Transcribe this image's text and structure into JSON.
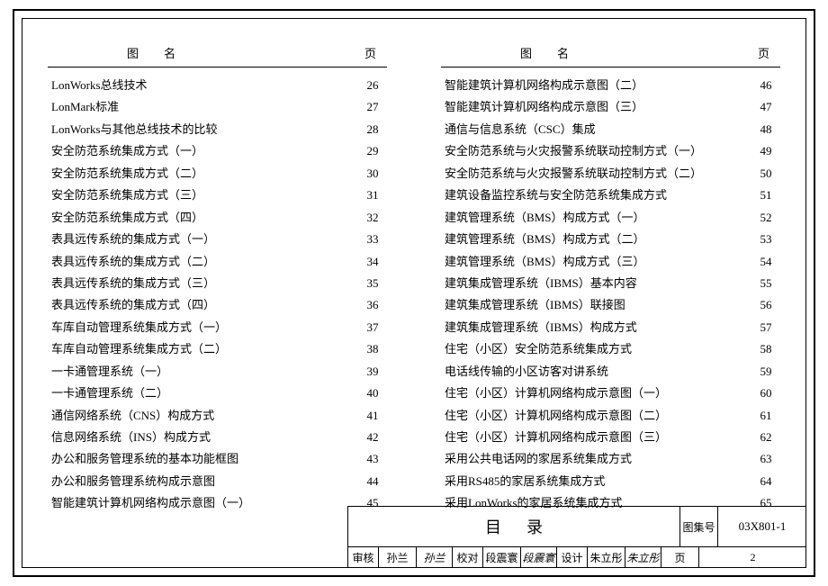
{
  "header": {
    "name": "图名",
    "page": "页"
  },
  "left": [
    {
      "title": "LonWorks总线技术",
      "page": "26"
    },
    {
      "title": "LonMark标准",
      "page": "27"
    },
    {
      "title": "LonWorks与其他总线技术的比较",
      "page": "28"
    },
    {
      "title": "安全防范系统集成方式（一）",
      "page": "29"
    },
    {
      "title": "安全防范系统集成方式（二）",
      "page": "30"
    },
    {
      "title": "安全防范系统集成方式（三）",
      "page": "31"
    },
    {
      "title": "安全防范系统集成方式（四）",
      "page": "32"
    },
    {
      "title": "表具远传系统的集成方式（一）",
      "page": "33"
    },
    {
      "title": "表具远传系统的集成方式（二）",
      "page": "34"
    },
    {
      "title": "表具远传系统的集成方式（三）",
      "page": "35"
    },
    {
      "title": "表具远传系统的集成方式（四）",
      "page": "36"
    },
    {
      "title": "车库自动管理系统集成方式（一）",
      "page": "37"
    },
    {
      "title": "车库自动管理系统集成方式（二）",
      "page": "38"
    },
    {
      "title": "一卡通管理系统（一）",
      "page": "39"
    },
    {
      "title": "一卡通管理系统（二）",
      "page": "40"
    },
    {
      "title": "通信网络系统（CNS）构成方式",
      "page": "41"
    },
    {
      "title": "信息网络系统（INS）构成方式",
      "page": "42"
    },
    {
      "title": "办公和服务管理系统的基本功能框图",
      "page": "43"
    },
    {
      "title": "办公和服务管理系统构成示意图",
      "page": "44"
    },
    {
      "title": "智能建筑计算机网络构成示意图（一）",
      "page": "45"
    }
  ],
  "right": [
    {
      "title": "智能建筑计算机网络构成示意图（二）",
      "page": "46"
    },
    {
      "title": "智能建筑计算机网络构成示意图（三）",
      "page": "47"
    },
    {
      "title": "通信与信息系统（CSC）集成",
      "page": "48"
    },
    {
      "title": "安全防范系统与火灾报警系统联动控制方式（一）",
      "page": "49"
    },
    {
      "title": "安全防范系统与火灾报警系统联动控制方式（二）",
      "page": "50"
    },
    {
      "title": "建筑设备监控系统与安全防范系统集成方式",
      "page": "51"
    },
    {
      "title": "建筑管理系统（BMS）构成方式（一）",
      "page": "52"
    },
    {
      "title": "建筑管理系统（BMS）构成方式（二）",
      "page": "53"
    },
    {
      "title": "建筑管理系统（BMS）构成方式（三）",
      "page": "54"
    },
    {
      "title": "建筑集成管理系统（IBMS）基本内容",
      "page": "55"
    },
    {
      "title": "建筑集成管理系统（IBMS）联接图",
      "page": "56"
    },
    {
      "title": "建筑集成管理系统（IBMS）构成方式",
      "page": "57"
    },
    {
      "title": "住宅（小区）安全防范系统集成方式",
      "page": "58"
    },
    {
      "title": "电话线传输的小区访客对讲系统",
      "page": "59"
    },
    {
      "title": "住宅（小区）计算机网络构成示意图（一）",
      "page": "60"
    },
    {
      "title": "住宅（小区）计算机网络构成示意图（二）",
      "page": "61"
    },
    {
      "title": "住宅（小区）计算机网络构成示意图（三）",
      "page": "62"
    },
    {
      "title": "采用公共电话网的家居系统集成方式",
      "page": "63"
    },
    {
      "title": "采用RS485的家居系统集成方式",
      "page": "64"
    },
    {
      "title": "采用LonWorks的家居系统集成方式",
      "page": "65"
    }
  ],
  "footer": {
    "mulu": "目录",
    "code_label": "图集号",
    "code_value": "03X801-1",
    "sig": [
      {
        "label": "审核",
        "name": "孙兰",
        "script": "孙兰"
      },
      {
        "label": "校对",
        "name": "段震寰",
        "script": "段震寰"
      },
      {
        "label": "设计",
        "name": "朱立彤",
        "script": "朱立彤"
      }
    ],
    "page_label": "页",
    "page_num": "2"
  }
}
